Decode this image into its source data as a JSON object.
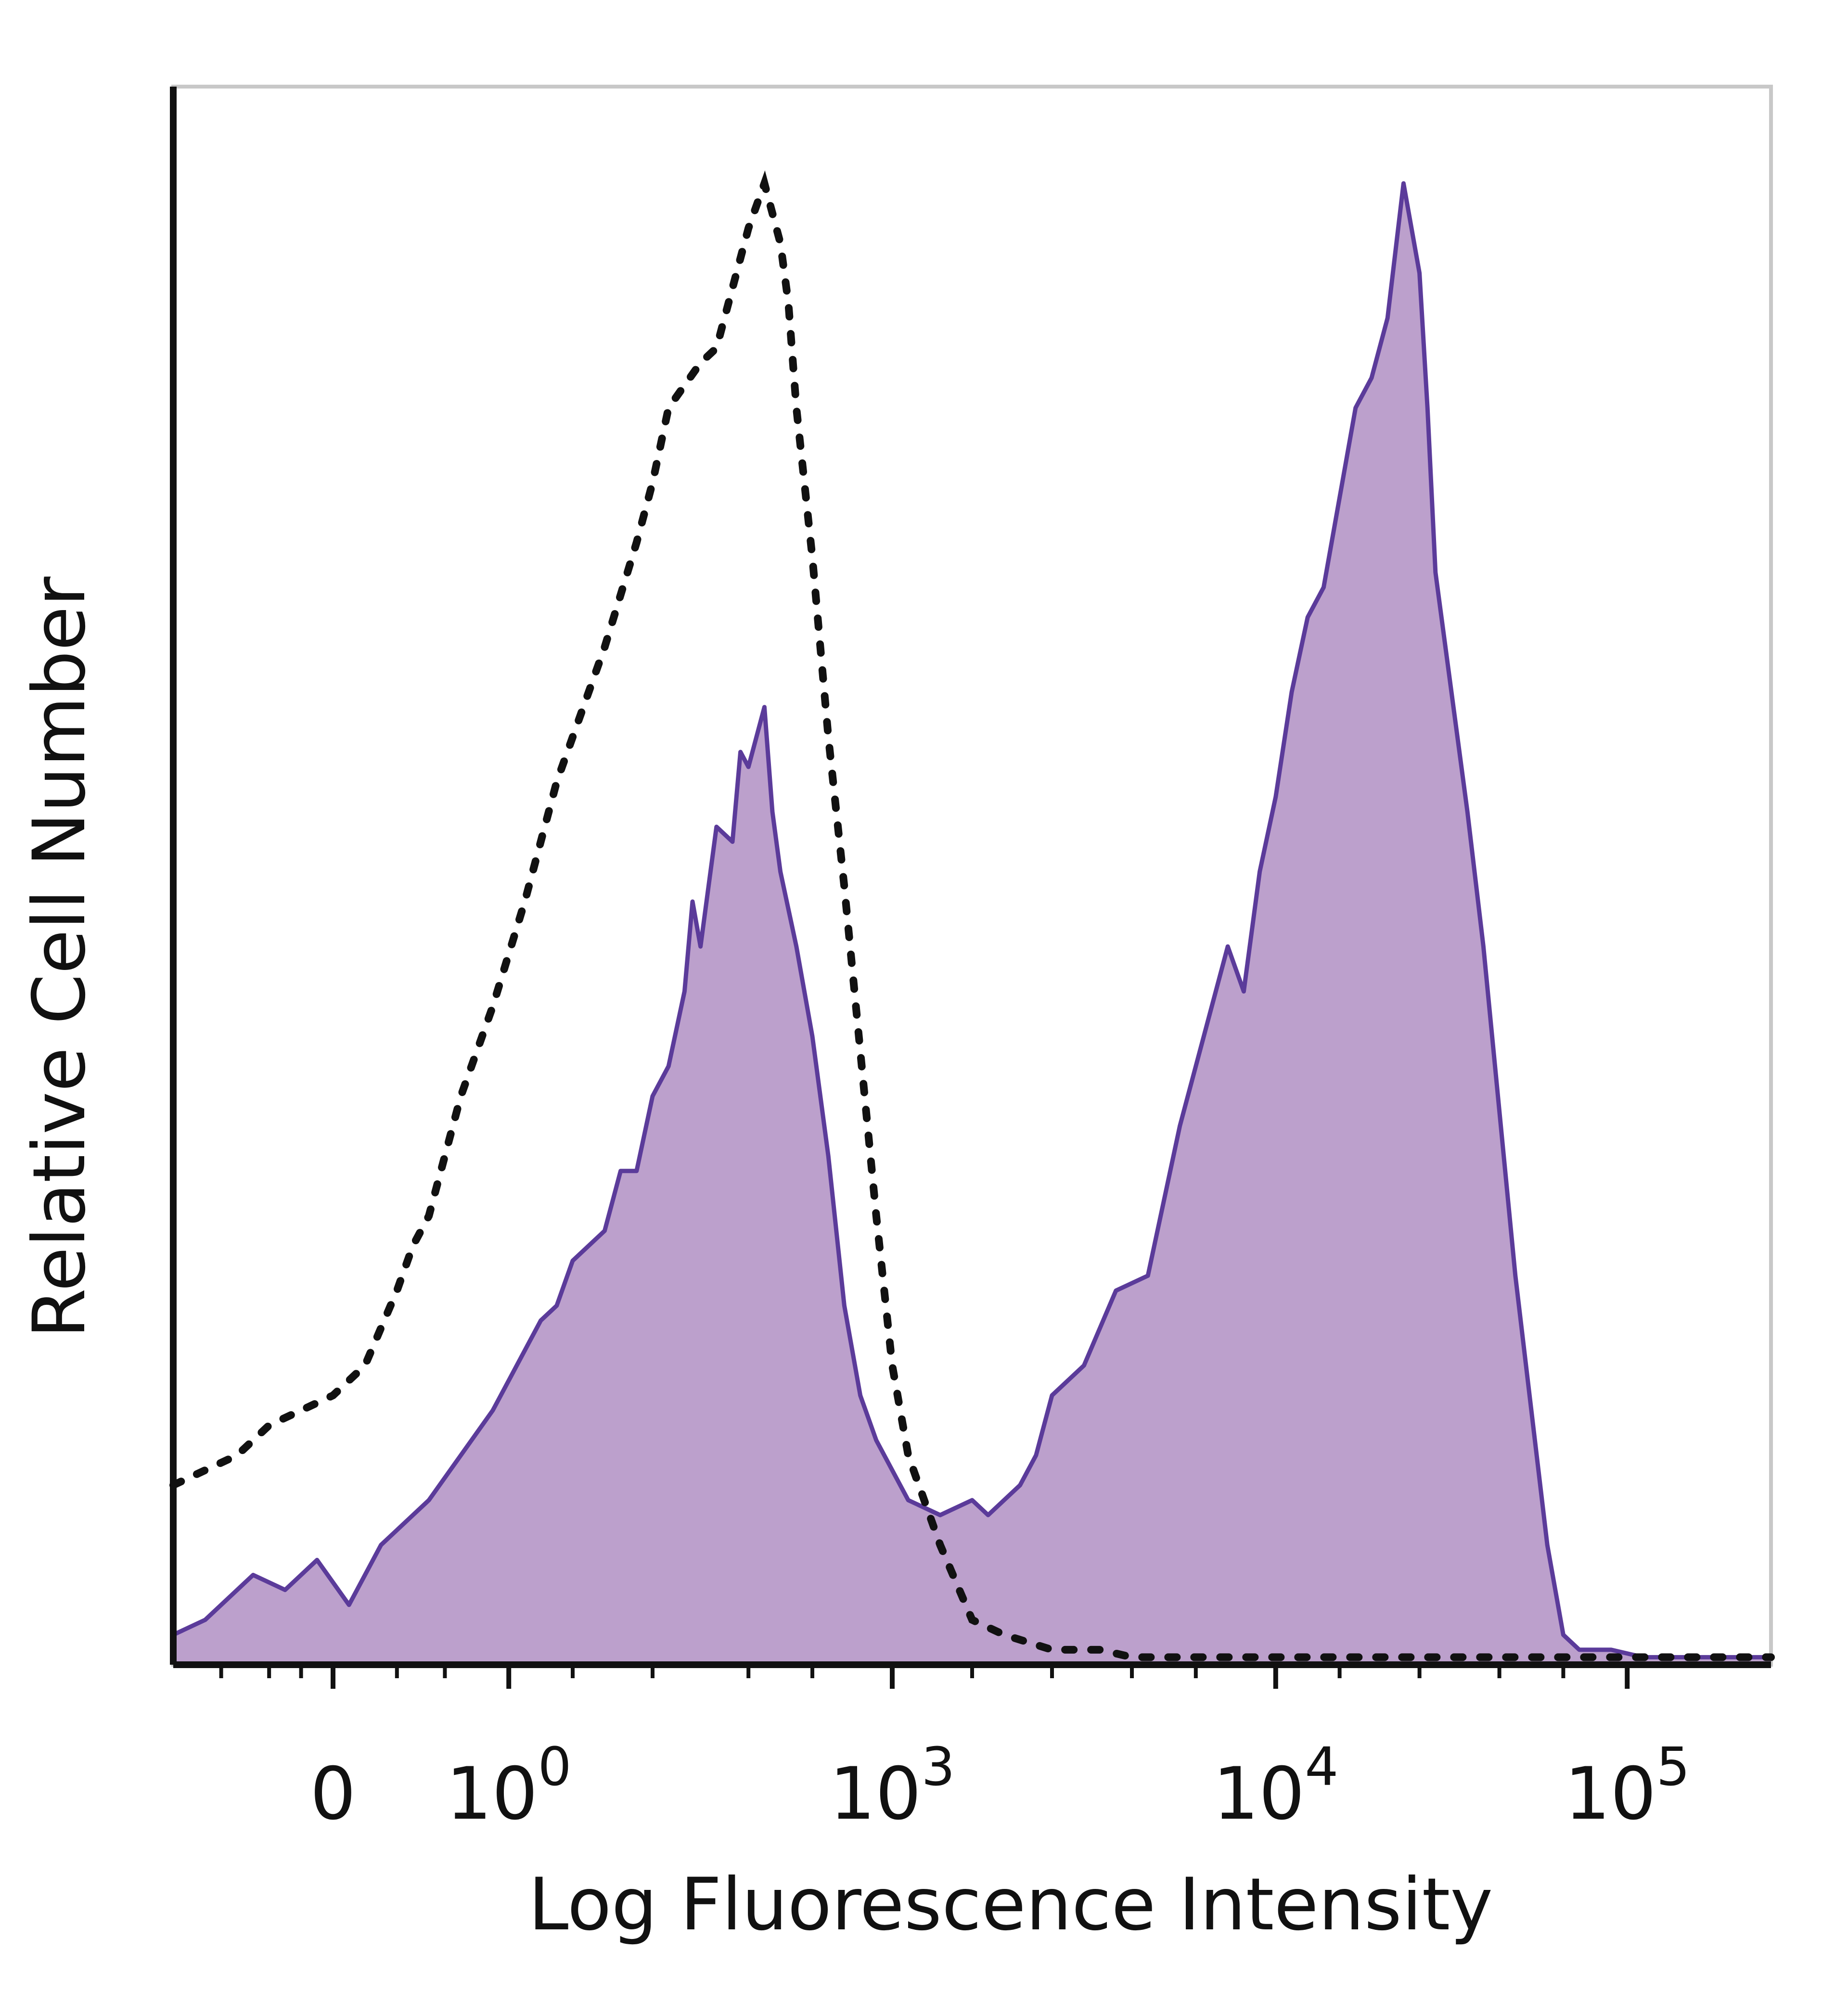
{
  "chart_data": {
    "type": "area",
    "title": "",
    "xlabel": "Log Fluorescence Intensity",
    "ylabel": "Relative Cell Number",
    "x_scale": "log (biexponential)",
    "ylim": [
      0,
      100
    ],
    "grid": false,
    "legend": "none",
    "x_ticks": [
      {
        "label": "0",
        "base": "0",
        "exp": "",
        "pos": 0.1
      },
      {
        "label": "10^0",
        "base": "10",
        "exp": "0",
        "pos": 0.21
      },
      {
        "label": "10^3",
        "base": "10",
        "exp": "3",
        "pos": 0.45
      },
      {
        "label": "10^4",
        "base": "10",
        "exp": "4",
        "pos": 0.69
      },
      {
        "label": "10^5",
        "base": "10",
        "exp": "5",
        "pos": 0.91
      }
    ],
    "series": [
      {
        "name": "",
        "style": "filled-solid",
        "color": "#5b3b9a",
        "fill": "#bca0cc",
        "x": [
          0.0,
          0.02,
          0.05,
          0.07,
          0.09,
          0.11,
          0.13,
          0.14,
          0.15,
          0.16,
          0.18,
          0.2,
          0.21,
          0.23,
          0.24,
          0.25,
          0.27,
          0.28,
          0.29,
          0.3,
          0.31,
          0.32,
          0.325,
          0.33,
          0.34,
          0.35,
          0.355,
          0.36,
          0.37,
          0.375,
          0.38,
          0.39,
          0.4,
          0.41,
          0.42,
          0.43,
          0.44,
          0.45,
          0.46,
          0.48,
          0.5,
          0.51,
          0.52,
          0.53,
          0.54,
          0.55,
          0.57,
          0.59,
          0.61,
          0.63,
          0.64,
          0.66,
          0.67,
          0.68,
          0.69,
          0.7,
          0.71,
          0.72,
          0.73,
          0.74,
          0.75,
          0.76,
          0.77,
          0.78,
          0.785,
          0.79,
          0.8,
          0.81,
          0.82,
          0.83,
          0.84,
          0.85,
          0.86,
          0.87,
          0.88,
          0.89,
          0.9,
          0.92,
          0.95,
          1.0
        ],
        "y": [
          2,
          3,
          6,
          5,
          7,
          4,
          8,
          9,
          10,
          11,
          14,
          17,
          19,
          23,
          24,
          27,
          29,
          33,
          33,
          38,
          40,
          45,
          51,
          48,
          56,
          55,
          61,
          60,
          64,
          57,
          53,
          48,
          42,
          34,
          24,
          18,
          15,
          13,
          11,
          10,
          11,
          10,
          11,
          12,
          14,
          18,
          20,
          25,
          26,
          36,
          40,
          48,
          45,
          53,
          58,
          65,
          70,
          72,
          78,
          84,
          86,
          90,
          99,
          93,
          84,
          73,
          65,
          57,
          48,
          37,
          26,
          17,
          8,
          2,
          1,
          1,
          1,
          0.5,
          0.5,
          0.5
        ]
      },
      {
        "name": "",
        "style": "dotted",
        "color": "#111111",
        "x": [
          0.0,
          0.02,
          0.04,
          0.06,
          0.08,
          0.1,
          0.12,
          0.14,
          0.15,
          0.16,
          0.18,
          0.2,
          0.22,
          0.24,
          0.25,
          0.27,
          0.29,
          0.3,
          0.31,
          0.33,
          0.34,
          0.35,
          0.36,
          0.37,
          0.38,
          0.385,
          0.39,
          0.4,
          0.41,
          0.42,
          0.43,
          0.44,
          0.45,
          0.46,
          0.48,
          0.5,
          0.52,
          0.55,
          0.58,
          0.6,
          0.65,
          0.7,
          0.75,
          0.8,
          0.85,
          0.9,
          0.95,
          1.0
        ],
        "y": [
          12,
          13,
          14,
          16,
          17,
          18,
          20,
          25,
          28,
          30,
          38,
          44,
          51,
          59,
          62,
          68,
          75,
          79,
          84,
          87,
          88,
          92,
          96,
          99,
          95,
          91,
          84,
          74,
          62,
          52,
          41,
          30,
          20,
          14,
          8,
          3,
          2,
          1,
          1,
          0.5,
          0.5,
          0.5,
          0.5,
          0.5,
          0.5,
          0.5,
          0.5,
          0.5
        ]
      }
    ]
  }
}
